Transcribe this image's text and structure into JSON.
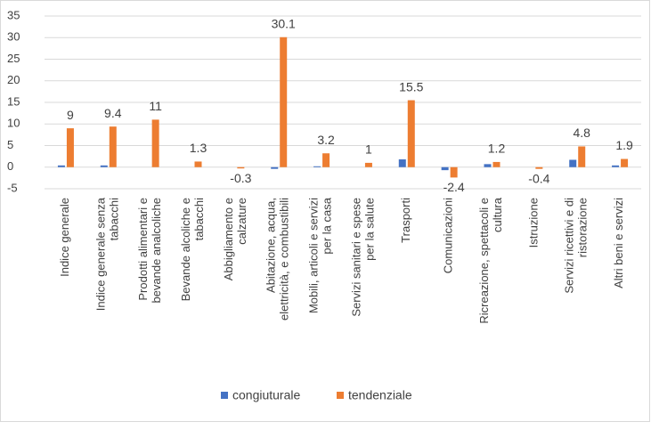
{
  "chart_data": {
    "type": "bar",
    "categories": [
      "Indice generale",
      "Indice generale senza\ntabacchi",
      "Prodotti alimentari e\nbevande analcoliche",
      "Bevande alcoliche e\ntabacchi",
      "Abbigliamento e\ncalzature",
      "Abitazione, acqua,\nelettricità, e combustibili",
      "Mobili, articoli e servizi\nper la casa",
      "Servizi sanitari e spese\nper la salute",
      "Trasporti",
      "Comunicazioni",
      "Ricreazione, spettacoli e\ncultura",
      "Istruzione",
      "Servizi ricettivi e di\nristorazione",
      "Altri beni e servizi"
    ],
    "series": [
      {
        "name": "congiuturale",
        "color": "#4472c4",
        "values": [
          0.4,
          0.4,
          0,
          0,
          0,
          -0.4,
          0.2,
          0,
          1.8,
          -0.7,
          0.7,
          0,
          1.7,
          0.4
        ]
      },
      {
        "name": "tendenziale",
        "color": "#ed7d31",
        "values": [
          9,
          9.4,
          11,
          1.3,
          -0.3,
          30.1,
          3.2,
          1,
          15.5,
          -2.4,
          1.2,
          -0.4,
          4.8,
          1.9
        ],
        "data_labels": true
      }
    ],
    "ylim": [
      -5,
      35
    ],
    "yticks": [
      -5,
      0,
      5,
      10,
      15,
      20,
      25,
      30,
      35
    ],
    "grid": true,
    "legend": "bottom"
  }
}
